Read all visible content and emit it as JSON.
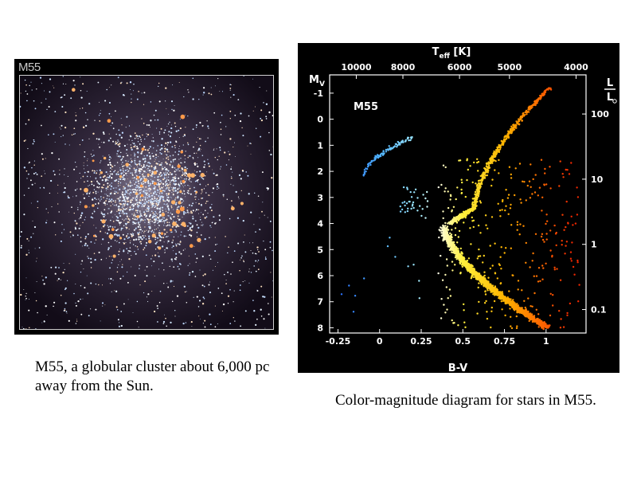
{
  "photo": {
    "label": "M55"
  },
  "captions": {
    "photo": "M55, a globular cluster about 6,000 pc away from the Sun.",
    "cmd": "Color-magnitude diagram for stars in M55."
  },
  "chart_data": {
    "type": "scatter",
    "title": "M55",
    "xlabel": "B-V",
    "ylabel": "M_V",
    "top_axis_label": "T_eff [K]",
    "right_axis_label": "L / L_sun",
    "x_ticks": [
      "-0.25",
      "0",
      "0.25",
      "0.5",
      "0.75",
      "1"
    ],
    "y_ticks": [
      "-1",
      "0",
      "1",
      "2",
      "3",
      "4",
      "5",
      "6",
      "7",
      "8"
    ],
    "top_ticks": [
      "10000",
      "8000",
      "6000",
      "5000",
      "4000"
    ],
    "right_ticks": [
      "100",
      "10",
      "1",
      "0.1"
    ],
    "xlim": [
      -0.3,
      1.24
    ],
    "ylim": [
      8.2,
      -1.7
    ],
    "background": "#000000",
    "sequences": [
      {
        "feature": "horizontal branch (blue)",
        "x_range": [
          -0.1,
          0.2
        ],
        "y_range": [
          0.5,
          2.5
        ],
        "color": "#3fa0ff"
      },
      {
        "feature": "blue stragglers",
        "x_range": [
          0.1,
          0.3
        ],
        "y_range": [
          2.5,
          4.0
        ],
        "color": "#7fe8ff"
      },
      {
        "feature": "main sequence",
        "x_range": [
          0.38,
          1.05
        ],
        "y_range": [
          4.0,
          8.0
        ],
        "color": "#ffd000"
      },
      {
        "feature": "subgiant and red giant branch",
        "x_range": [
          0.45,
          1.05
        ],
        "y_range": [
          -1.2,
          4.0
        ],
        "color": "#ff8a00"
      }
    ]
  }
}
